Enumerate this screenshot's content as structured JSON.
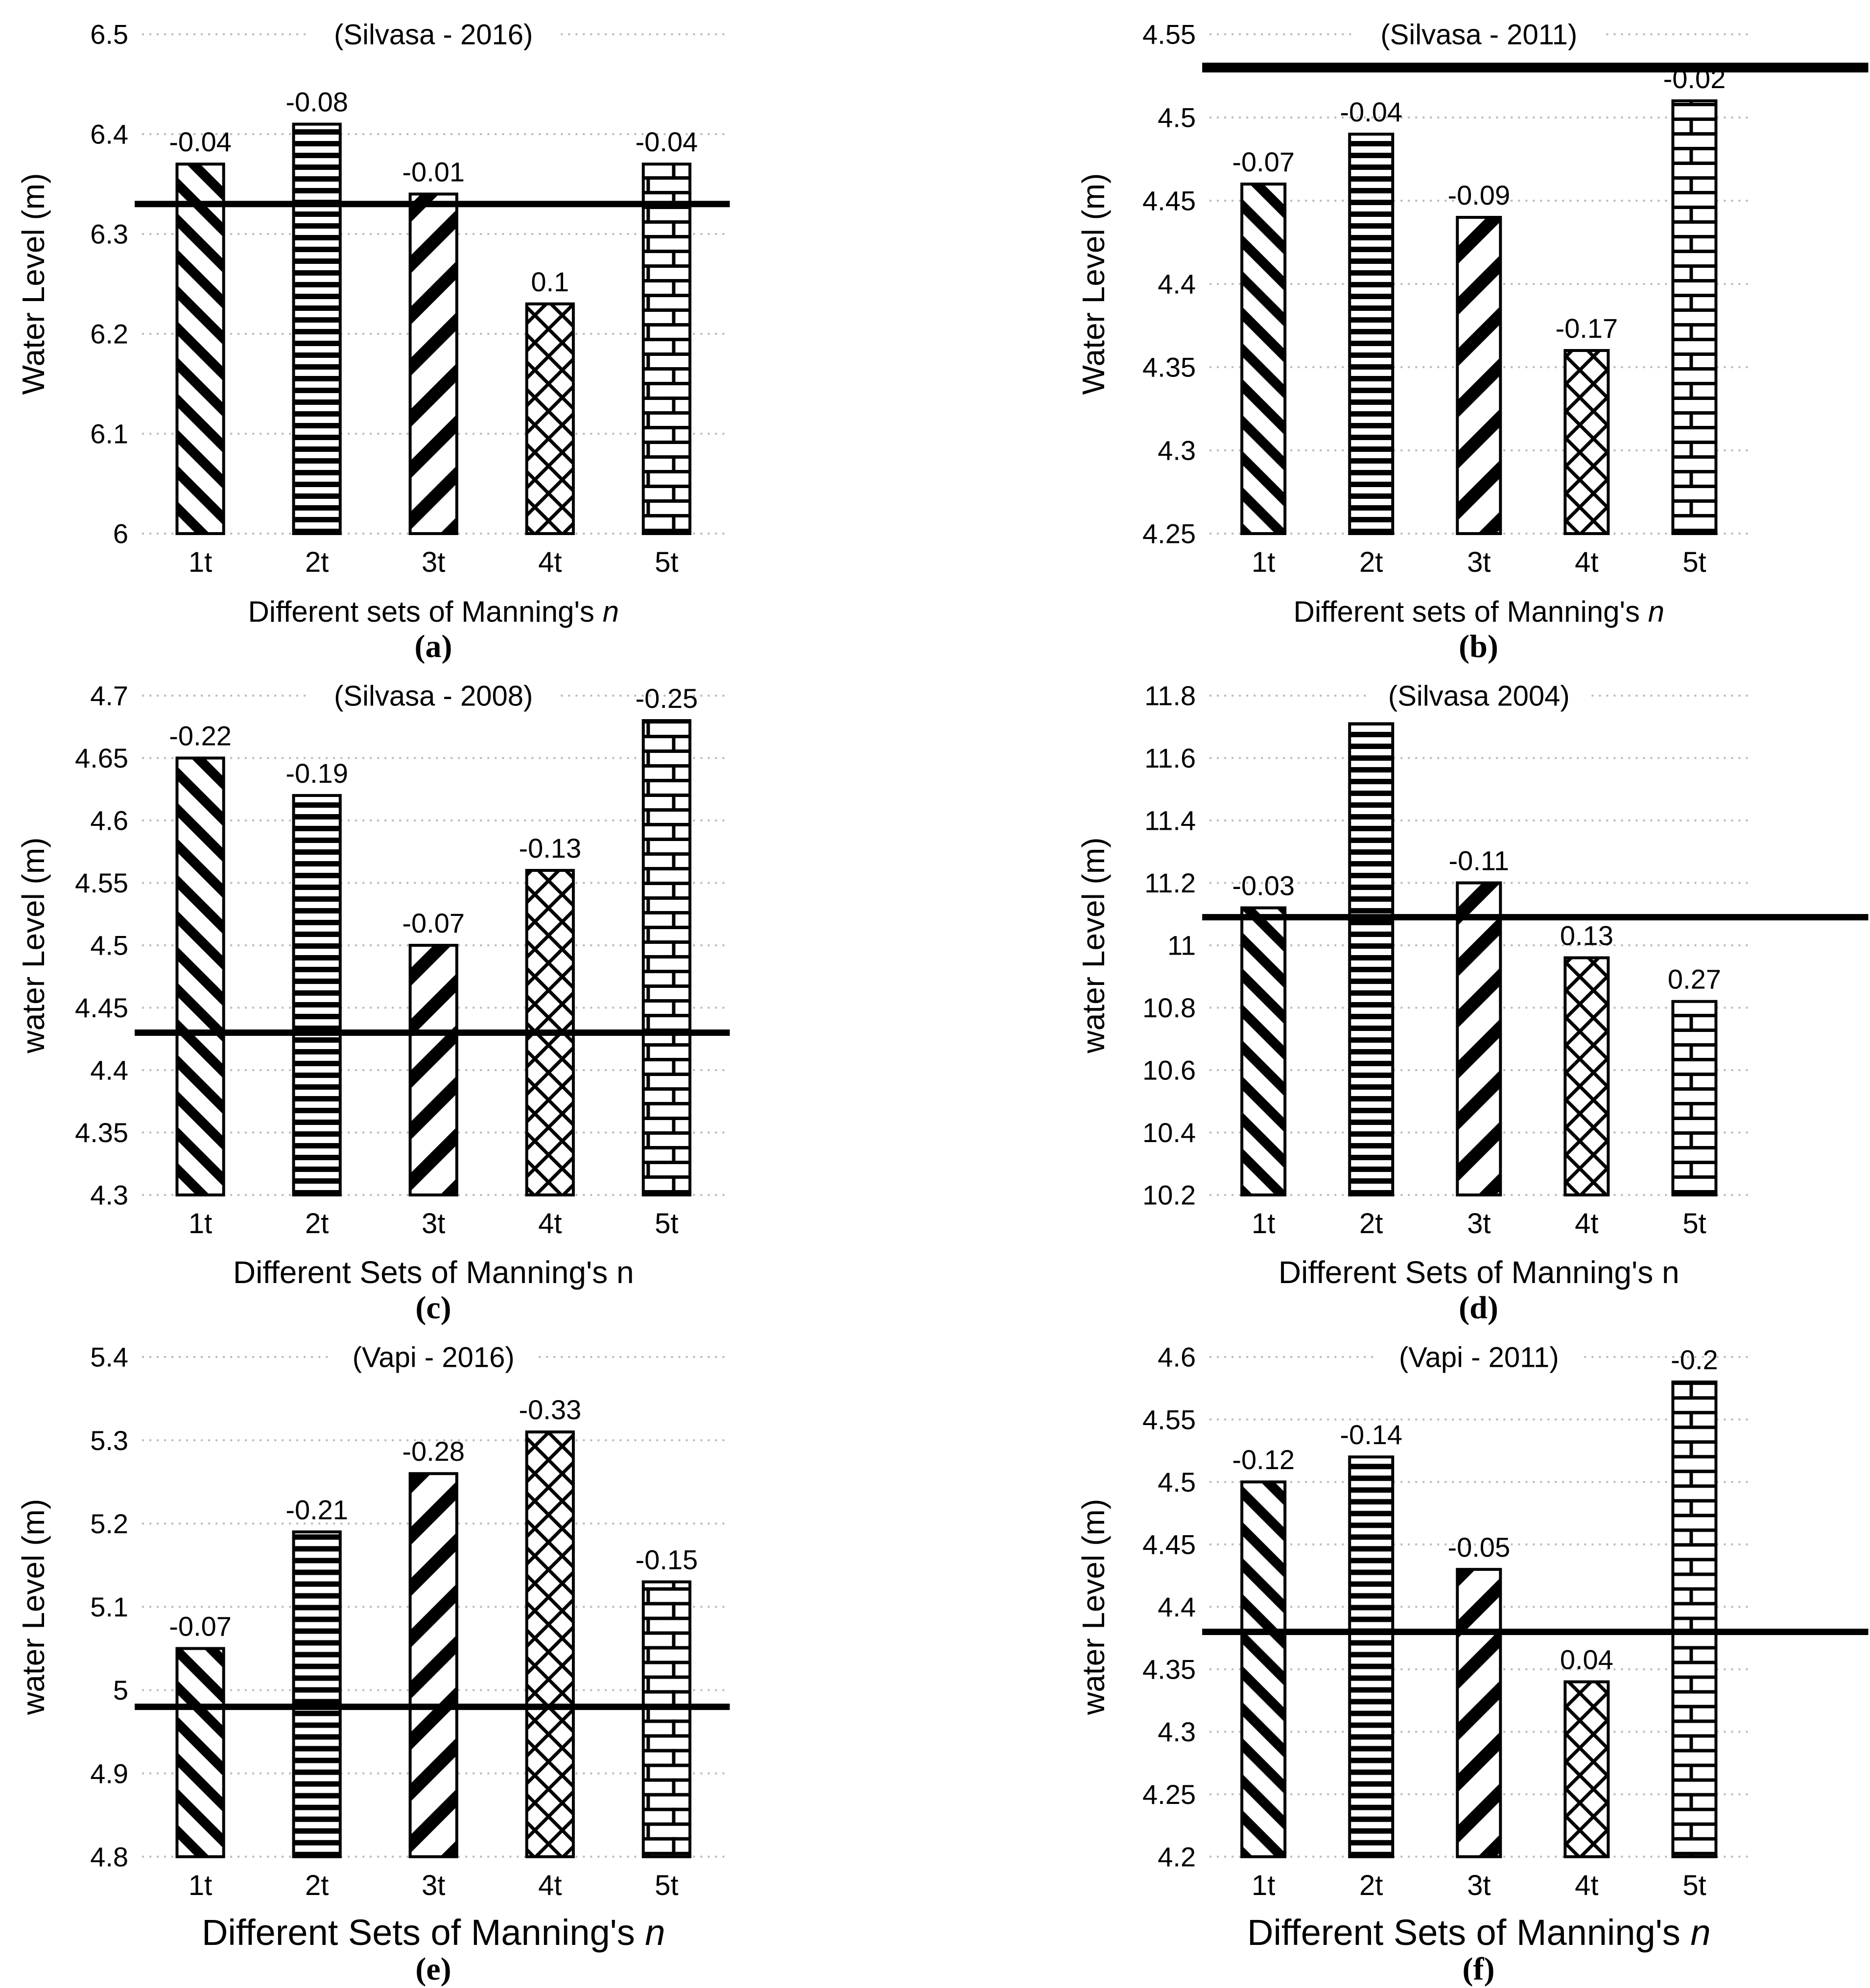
{
  "figure": {
    "description": "Simulated water levels for different sets of Manning's n versus observed water level (thick line)",
    "bar_pattern_names": [
      "diagonal-down-hatch",
      "horizontal-lines",
      "diagonal-up-hatch",
      "crosshatch-scale",
      "brick"
    ],
    "colors": {
      "bar_stroke": "#000000",
      "gridline": "#bbbbbb",
      "observed_line": "#000000",
      "text": "#000000",
      "background": "#ffffff"
    }
  },
  "chart_data": [
    {
      "type": "bar",
      "id": "a",
      "caption": "(a)",
      "title": "(Silvasa - 2016)",
      "ylabel": "Water Level (m)",
      "xlabel": "Different sets of Manning's n",
      "xlabel_n_italic": true,
      "categories": [
        "1t",
        "2t",
        "3t",
        "4t",
        "5t"
      ],
      "values": [
        6.37,
        6.41,
        6.34,
        6.23,
        6.37
      ],
      "bar_labels": [
        "-0.04",
        "-0.08",
        "-0.01",
        "0.1",
        "-0.04"
      ],
      "observed_line": 6.33,
      "ylim": [
        6,
        6.5
      ],
      "ytick_step": 0.1,
      "grid": "dotted",
      "legend": null
    },
    {
      "type": "bar",
      "id": "b",
      "caption": "(b)",
      "title": "(Silvasa - 2011)",
      "ylabel": "Water Level (m)",
      "xlabel": "Different sets of Manning's n",
      "xlabel_n_italic": true,
      "categories": [
        "1t",
        "2t",
        "3t",
        "4t",
        "5t"
      ],
      "values": [
        4.46,
        4.49,
        4.44,
        4.36,
        4.51
      ],
      "bar_labels": [
        "-0.07",
        "-0.04",
        "-0.09",
        "-0.17",
        "-0.02"
      ],
      "observed_line": 4.53,
      "ylim": [
        4.25,
        4.55
      ],
      "ytick_step": 0.05,
      "grid": "dotted",
      "legend": null
    },
    {
      "type": "bar",
      "id": "c",
      "caption": "(c)",
      "title": "(Silvasa - 2008)",
      "ylabel": "water Level (m)",
      "xlabel": "Different Sets of Manning's n",
      "xlabel_n_italic": false,
      "categories": [
        "1t",
        "2t",
        "3t",
        "4t",
        "5t"
      ],
      "values": [
        4.65,
        4.62,
        4.5,
        4.56,
        4.68
      ],
      "bar_labels": [
        "-0.22",
        "-0.19",
        "-0.07",
        "-0.13",
        "-0.25"
      ],
      "observed_line": 4.43,
      "ylim": [
        4.3,
        4.7
      ],
      "ytick_step": 0.05,
      "grid": "dotted",
      "legend": null
    },
    {
      "type": "bar",
      "id": "d",
      "caption": "(d)",
      "title": "(Silvasa 2004)",
      "ylabel": "water Level (m)",
      "xlabel": "Different Sets of Manning's n",
      "xlabel_n_italic": false,
      "categories": [
        "1t",
        "2t",
        "3t",
        "4t",
        "5t"
      ],
      "values": [
        11.12,
        11.71,
        11.2,
        10.96,
        10.82
      ],
      "bar_labels": [
        "-0.03",
        null,
        "-0.11",
        "0.13",
        "0.27"
      ],
      "observed_line": 11.09,
      "ylim": [
        10.2,
        11.8
      ],
      "ytick_step": 0.2,
      "grid": "dotted",
      "legend": null
    },
    {
      "type": "bar",
      "id": "e",
      "caption": "(e)",
      "title": "(Vapi - 2016)",
      "ylabel": "water Level (m)",
      "xlabel": "Different Sets of Manning's n",
      "xlabel_n_italic": true,
      "categories": [
        "1t",
        "2t",
        "3t",
        "4t",
        "5t"
      ],
      "values": [
        5.05,
        5.19,
        5.26,
        5.31,
        5.13
      ],
      "bar_labels": [
        "-0.07",
        "-0.21",
        "-0.28",
        "-0.33",
        "-0.15"
      ],
      "observed_line": 4.98,
      "ylim": [
        4.8,
        5.4
      ],
      "ytick_step": 0.1,
      "grid": "dotted",
      "legend": null
    },
    {
      "type": "bar",
      "id": "f",
      "caption": "(f)",
      "title": "(Vapi - 2011)",
      "ylabel": "water Level (m)",
      "xlabel": "Different Sets of Manning's n",
      "xlabel_n_italic": true,
      "categories": [
        "1t",
        "2t",
        "3t",
        "4t",
        "5t"
      ],
      "values": [
        4.5,
        4.52,
        4.43,
        4.34,
        4.58
      ],
      "bar_labels": [
        "-0.12",
        "-0.14",
        "-0.05",
        "0.04",
        "-0.2"
      ],
      "observed_line": 4.38,
      "ylim": [
        4.2,
        4.6
      ],
      "ytick_step": 0.05,
      "grid": "dotted",
      "legend": null
    }
  ]
}
